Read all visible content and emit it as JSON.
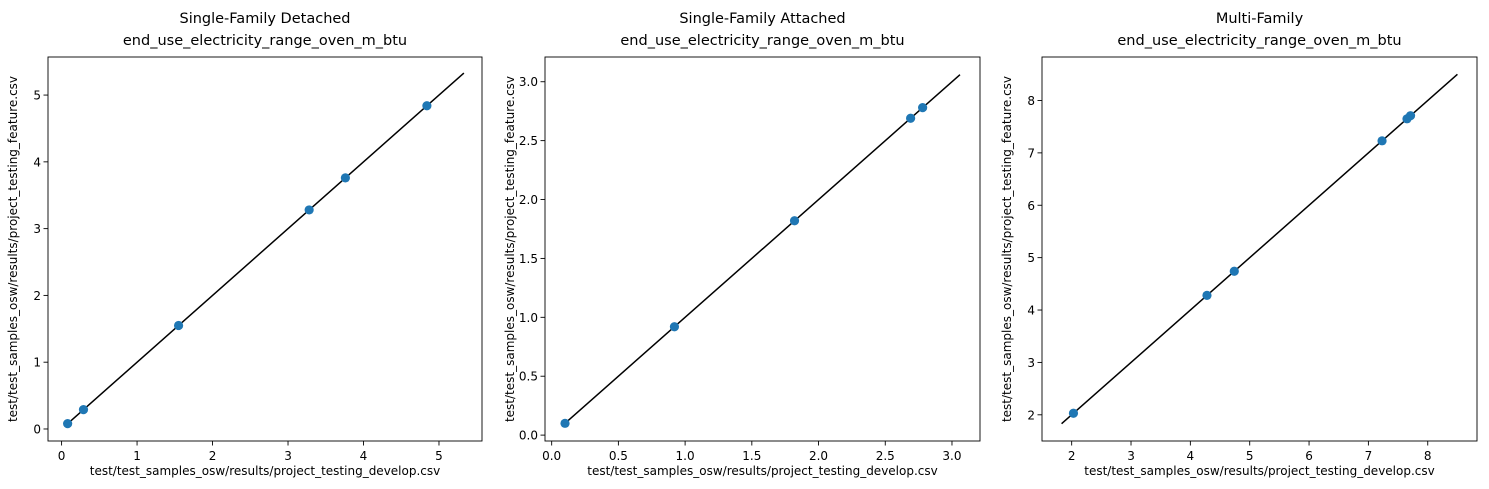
{
  "chart_data": [
    {
      "type": "scatter",
      "title": "Single-Family Detached",
      "subtitle": "end_use_electricity_range_oven_m_btu",
      "xlabel": "test/test_samples_osw/results/project_testing_develop.csv",
      "ylabel": "test/test_samples_osw/results/project_testing_feature.csv",
      "xlim": [
        -0.18,
        5.57
      ],
      "ylim": [
        -0.18,
        5.57
      ],
      "xticks": [
        0,
        1,
        2,
        3,
        4,
        5
      ],
      "yticks": [
        0,
        1,
        2,
        3,
        4,
        5
      ],
      "tick_format": 0,
      "grid": false,
      "points": [
        [
          0.08,
          0.08
        ],
        [
          0.29,
          0.29
        ],
        [
          1.55,
          1.55
        ],
        [
          3.28,
          3.28
        ],
        [
          3.76,
          3.76
        ],
        [
          4.84,
          4.84
        ]
      ],
      "line": [
        [
          0.08,
          0.08
        ],
        [
          5.33,
          5.33
        ]
      ],
      "point_color": "#1f77b4",
      "line_color": "#000000"
    },
    {
      "type": "scatter",
      "title": "Single-Family Attached",
      "subtitle": "end_use_electricity_range_oven_m_btu",
      "xlabel": "test/test_samples_osw/results/project_testing_develop.csv",
      "ylabel": "test/test_samples_osw/results/project_testing_feature.csv",
      "xlim": [
        -0.05,
        3.21
      ],
      "ylim": [
        -0.05,
        3.21
      ],
      "xticks": [
        0,
        0.5,
        1.0,
        1.5,
        2.0,
        2.5,
        3.0
      ],
      "yticks": [
        0,
        0.5,
        1.0,
        1.5,
        2.0,
        2.5,
        3.0
      ],
      "tick_format": 1,
      "grid": false,
      "points": [
        [
          0.1,
          0.1
        ],
        [
          0.92,
          0.92
        ],
        [
          1.82,
          1.82
        ],
        [
          2.69,
          2.69
        ],
        [
          2.78,
          2.78
        ]
      ],
      "line": [
        [
          0.1,
          0.1
        ],
        [
          3.06,
          3.06
        ]
      ],
      "point_color": "#1f77b4",
      "line_color": "#000000"
    },
    {
      "type": "scatter",
      "title": "Multi-Family",
      "subtitle": "end_use_electricity_range_oven_m_btu",
      "xlabel": "test/test_samples_osw/results/project_testing_develop.csv",
      "ylabel": "test/test_samples_osw/results/project_testing_feature.csv",
      "xlim": [
        1.5,
        8.83
      ],
      "ylim": [
        1.5,
        8.83
      ],
      "xticks": [
        2,
        3,
        4,
        5,
        6,
        7,
        8
      ],
      "yticks": [
        2,
        3,
        4,
        5,
        6,
        7,
        8
      ],
      "tick_format": 0,
      "grid": false,
      "points": [
        [
          2.03,
          2.03
        ],
        [
          4.28,
          4.28
        ],
        [
          4.74,
          4.74
        ],
        [
          7.23,
          7.23
        ],
        [
          7.65,
          7.65
        ],
        [
          7.71,
          7.71
        ]
      ],
      "line": [
        [
          1.83,
          1.83
        ],
        [
          8.5,
          8.5
        ]
      ],
      "point_color": "#1f77b4",
      "line_color": "#000000"
    }
  ]
}
